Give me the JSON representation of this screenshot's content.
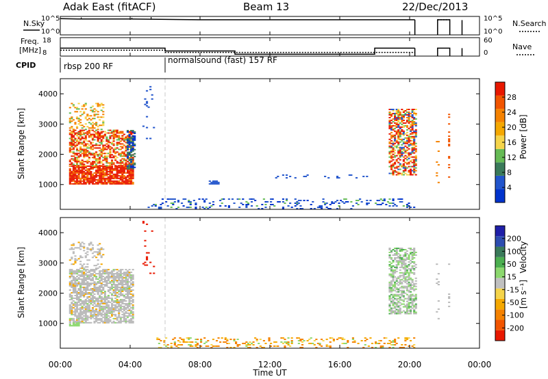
{
  "header": {
    "station": "Adak East (fitACF)",
    "beam": "Beam 13",
    "date": "22/Dec/2013"
  },
  "colors": {
    "power_scale": [
      "#0033cc",
      "#2255cc",
      "#3a7a5a",
      "#66bb55",
      "#f5d44a",
      "#f5a800",
      "#f58200",
      "#f25500",
      "#e81800"
    ],
    "velocity_scale": [
      "#e81800",
      "#f25500",
      "#f58200",
      "#f5a800",
      "#f5d44a",
      "#c0c0c0",
      "#8cd86e",
      "#4caf50",
      "#3a7a5a",
      "#2d4db0",
      "#1f1fa8"
    ],
    "ground_scatter": "#b9b9b9"
  },
  "chart_data": [
    {
      "type": "line",
      "panel": "N.Sky / N.Search",
      "labels": {
        "left": "N.Sky",
        "right": "N.Search"
      },
      "left_ticks": [
        "10^5",
        "10^0"
      ],
      "right_ticks": [
        "10^5",
        "10^0"
      ],
      "x_ticks_hours": [
        0,
        4,
        8,
        12,
        16,
        20,
        24
      ],
      "series": [
        {
          "name": "N.Sky",
          "points": [
            [
              0,
              4.4
            ],
            [
              1,
              4.3
            ],
            [
              4,
              4.3
            ],
            [
              8,
              4.1
            ],
            [
              12,
              4.1
            ],
            [
              16,
              4.1
            ],
            [
              20,
              4.1
            ],
            [
              20.3,
              4.1
            ]
          ]
        },
        {
          "name": "N.Search",
          "points": [
            [
              21.6,
              4.1
            ],
            [
              22.3,
              4.1
            ]
          ]
        }
      ]
    },
    {
      "type": "line",
      "panel": "Freq / Nave",
      "labels": {
        "left_top": "Freq.",
        "left_bottom": "[MHz]",
        "right": "Nave"
      },
      "left_ticks": [
        "18",
        "8"
      ],
      "right_ticks": [
        "60",
        "0"
      ],
      "series": [
        {
          "name": "Freq.",
          "points": [
            [
              0,
              12.3
            ],
            [
              6,
              12.3
            ],
            [
              6,
              10.8
            ],
            [
              10,
              10.8
            ],
            [
              10,
              9.0
            ],
            [
              18,
              9.0
            ],
            [
              18,
              12.3
            ],
            [
              20.3,
              12.3
            ]
          ]
        },
        {
          "name": "Nave",
          "points": [
            [
              0,
              11.2
            ],
            [
              6,
              11.2
            ],
            [
              6,
              10.0
            ],
            [
              20.3,
              10.0
            ]
          ]
        }
      ]
    },
    {
      "type": "table",
      "panel": "CPID",
      "label": "CPID",
      "segments": [
        {
          "start": 0,
          "end": 6,
          "text": "rbsp 200 RF"
        },
        {
          "start": 6,
          "end": 20.4,
          "text": "normalsound (fast) 157 RF"
        }
      ]
    },
    {
      "type": "heatmap",
      "panel": "Power",
      "ylabel": "Slant Range [km]",
      "xlim_hours": [
        0,
        24
      ],
      "ylim": [
        180,
        4500
      ],
      "y_ticks": [
        1000,
        2000,
        3000,
        4000
      ],
      "colorbar": {
        "label": "Power [dB]",
        "ticks": [
          4,
          8,
          12,
          16,
          20,
          24,
          28
        ]
      },
      "regions": [
        {
          "t": [
            0.5,
            4.2
          ],
          "r": [
            1000,
            3700
          ],
          "dominant_db": 28
        },
        {
          "t": [
            8.5,
            9.0
          ],
          "r": [
            1000,
            1100
          ],
          "dominant_db": 4
        },
        {
          "t": [
            5.0,
            20.3
          ],
          "r": [
            180,
            500
          ],
          "dominant_db": 8
        },
        {
          "t": [
            18.8,
            20.4
          ],
          "r": [
            1300,
            3500
          ],
          "dominant_db": 24
        }
      ]
    },
    {
      "type": "heatmap",
      "panel": "Velocity",
      "ylabel": "Slant Range [km]",
      "xlabel": "Time UT",
      "x_tick_labels": [
        "00:00",
        "04:00",
        "08:00",
        "12:00",
        "16:00",
        "20:00",
        "00:00"
      ],
      "ylim": [
        180,
        4500
      ],
      "y_ticks": [
        1000,
        2000,
        3000,
        4000
      ],
      "colorbar": {
        "label_main": "Velocity",
        "label_unit": "[m s⁻¹]",
        "ticks": [
          "200",
          "100",
          "50",
          "15",
          "-15",
          "-50",
          "-100",
          "-200"
        ]
      },
      "regions": [
        {
          "t": [
            0.5,
            4.2
          ],
          "r": [
            1000,
            3700
          ],
          "dominant_ms": "ground scatter"
        },
        {
          "t": [
            5.5,
            20.3
          ],
          "r": [
            180,
            500
          ],
          "dominant_ms": -50
        },
        {
          "t": [
            18.8,
            20.4
          ],
          "r": [
            1300,
            3500
          ],
          "dominant_ms": "ground scatter"
        }
      ]
    }
  ]
}
